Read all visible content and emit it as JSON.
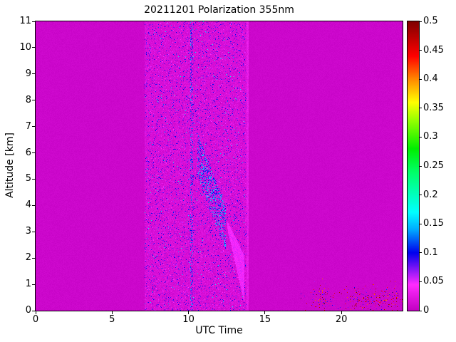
{
  "chart_data": {
    "type": "heatmap",
    "title": "20211201 Polarization 355nm",
    "xlabel": "UTC Time",
    "ylabel": "Altitude [km]",
    "x_range": [
      0,
      24
    ],
    "y_range": [
      0,
      11
    ],
    "grid": false,
    "x_tick_values": [
      0,
      5,
      10,
      15,
      20
    ],
    "x_tick_labels": [
      "0",
      "5",
      "10",
      "15",
      "20"
    ],
    "y_tick_values": [
      0,
      1,
      2,
      3,
      4,
      5,
      6,
      7,
      8,
      9,
      10,
      11
    ],
    "y_tick_labels": [
      "0",
      "1",
      "2",
      "3",
      "4",
      "5",
      "6",
      "7",
      "8",
      "9",
      "10",
      "11"
    ],
    "colorbar": {
      "range": [
        0,
        0.5
      ],
      "tick_values": [
        0,
        0.05,
        0.1,
        0.15,
        0.2,
        0.25,
        0.3,
        0.35,
        0.4,
        0.45,
        0.5
      ],
      "tick_labels": [
        "0",
        "0.05",
        "0.1",
        "0.15",
        "0.2",
        "0.25",
        "0.3",
        "0.35",
        "0.4",
        "0.45",
        "0.5"
      ]
    },
    "colormap": [
      [
        0.0,
        "#C200C2"
      ],
      [
        0.045,
        "#FF2BFF"
      ],
      [
        0.1,
        "#0000EE"
      ],
      [
        0.14,
        "#00AAFF"
      ],
      [
        0.17,
        "#00FFFF"
      ],
      [
        0.24,
        "#00FF66"
      ],
      [
        0.28,
        "#00EE00"
      ],
      [
        0.33,
        "#99FF00"
      ],
      [
        0.36,
        "#FFFF00"
      ],
      [
        0.4,
        "#FF8800"
      ],
      [
        0.44,
        "#FF0000"
      ],
      [
        0.5,
        "#7F0000"
      ]
    ],
    "heatmap": {
      "seed": 42,
      "base_value": 0.004,
      "base_noise": 0.006,
      "band": {
        "t": [
          7.15,
          13.85
        ],
        "base": 0.008,
        "noise": 0.015,
        "speckle_prob": 0.13,
        "speckle_max": 0.11,
        "rare_prob": 0.012,
        "rare_max": 0.2
      },
      "column": {
        "t": [
          10.12,
          10.3
        ],
        "prob": 0.3,
        "min": 0.04,
        "max": 0.15
      },
      "streak": {
        "t": [
          10.6,
          12.45
        ],
        "alt_start": 5.9,
        "slope": -1.5,
        "half_width": 0.85,
        "prob": 0.35,
        "min": 0.05,
        "max": 0.17
      },
      "wedge": {
        "t": [
          12.55,
          13.65
        ],
        "top_start": 3.4,
        "top_end": 2.1,
        "bot_start": 3.1,
        "bot_end": 0.3,
        "alt_floor": 0.25,
        "value": 0.035,
        "noise": 0.02
      },
      "edge_line": {
        "t": [
          13.8,
          13.92
        ],
        "value": 0.02,
        "noise": 0.015
      },
      "bottom_right": {
        "t": [
          17.3,
          24
        ],
        "alt_max": 1.3,
        "alt_peak": 0.45,
        "sigma2": 0.12,
        "base_prob": 0.05,
        "clusters": [
          [
            18.2,
            19.2
          ],
          [
            20.8,
            23.7
          ]
        ],
        "cluster_boost": 3.0,
        "dot_main": [
          0.4,
          0.5
        ],
        "dot_alt": [
          0.06,
          0.11
        ],
        "alt_frac": 0.35
      }
    }
  }
}
